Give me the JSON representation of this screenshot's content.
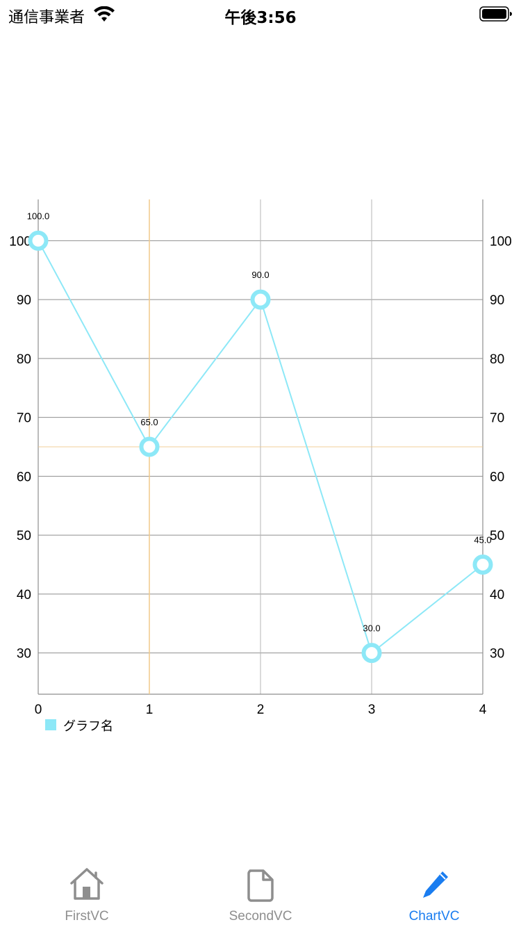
{
  "status_bar": {
    "carrier": "通信事業者",
    "time": "午後3:56"
  },
  "tabs": [
    {
      "label": "FirstVC",
      "icon": "house-icon",
      "active": false
    },
    {
      "label": "SecondVC",
      "icon": "document-icon",
      "active": false
    },
    {
      "label": "ChartVC",
      "icon": "pencil-icon",
      "active": true
    }
  ],
  "colors": {
    "series": "#8de8f7",
    "highlight": "#f0c98a",
    "grid": "#8e8e8e",
    "tab_active": "#1a7df0",
    "tab_inactive": "#8e8e8e"
  },
  "chart_data": {
    "type": "line",
    "x": [
      0,
      1,
      2,
      3,
      4
    ],
    "series": [
      {
        "name": "グラフ名",
        "values": [
          100,
          65,
          90,
          30,
          45
        ]
      }
    ],
    "value_labels": [
      "100.0",
      "65.0",
      "90.0",
      "30.0",
      "45.0"
    ],
    "x_ticks": [
      "0",
      "1",
      "2",
      "3",
      "4"
    ],
    "y_ticks": [
      "30",
      "40",
      "50",
      "60",
      "70",
      "80",
      "90",
      "100"
    ],
    "xlim": [
      0,
      4
    ],
    "ylim": [
      23,
      107
    ],
    "left_axis": true,
    "right_axis": true,
    "grid": true,
    "highlight": {
      "x": 1,
      "y": 65
    },
    "legend_position": "bottom-left"
  }
}
